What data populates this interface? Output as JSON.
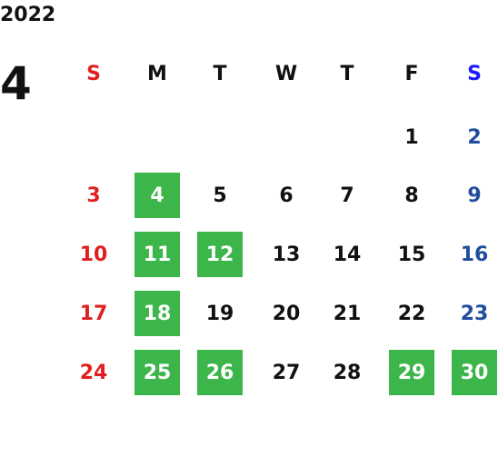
{
  "year": "2022",
  "month": "4",
  "weekdays": [
    "S",
    "M",
    "T",
    "W",
    "T",
    "F",
    "S"
  ],
  "weekday_colors": [
    "#e02020",
    "#111111",
    "#111111",
    "#111111",
    "#111111",
    "#111111",
    "#1a1aff"
  ],
  "day_colors": [
    "#e02020",
    "#111111",
    "#111111",
    "#111111",
    "#111111",
    "#111111",
    "#1f4e9c"
  ],
  "highlight_color": "#3cb54a",
  "highlight_text_color": "#ffffff",
  "weeks": [
    [
      null,
      null,
      null,
      null,
      null,
      {
        "day": 1,
        "highlight": false
      },
      {
        "day": 2,
        "highlight": false
      }
    ],
    [
      {
        "day": 3,
        "highlight": false
      },
      {
        "day": 4,
        "highlight": true
      },
      {
        "day": 5,
        "highlight": false
      },
      {
        "day": 6,
        "highlight": false
      },
      {
        "day": 7,
        "highlight": false
      },
      {
        "day": 8,
        "highlight": false
      },
      {
        "day": 9,
        "highlight": false
      }
    ],
    [
      {
        "day": 10,
        "highlight": false
      },
      {
        "day": 11,
        "highlight": true
      },
      {
        "day": 12,
        "highlight": true
      },
      {
        "day": 13,
        "highlight": false
      },
      {
        "day": 14,
        "highlight": false
      },
      {
        "day": 15,
        "highlight": false
      },
      {
        "day": 16,
        "highlight": false
      }
    ],
    [
      {
        "day": 17,
        "highlight": false
      },
      {
        "day": 18,
        "highlight": true
      },
      {
        "day": 19,
        "highlight": false
      },
      {
        "day": 20,
        "highlight": false
      },
      {
        "day": 21,
        "highlight": false
      },
      {
        "day": 22,
        "highlight": false
      },
      {
        "day": 23,
        "highlight": false
      }
    ],
    [
      {
        "day": 24,
        "highlight": false
      },
      {
        "day": 25,
        "highlight": true
      },
      {
        "day": 26,
        "highlight": true
      },
      {
        "day": 27,
        "highlight": false
      },
      {
        "day": 28,
        "highlight": false
      },
      {
        "day": 29,
        "highlight": true
      },
      {
        "day": 30,
        "highlight": true
      }
    ]
  ]
}
